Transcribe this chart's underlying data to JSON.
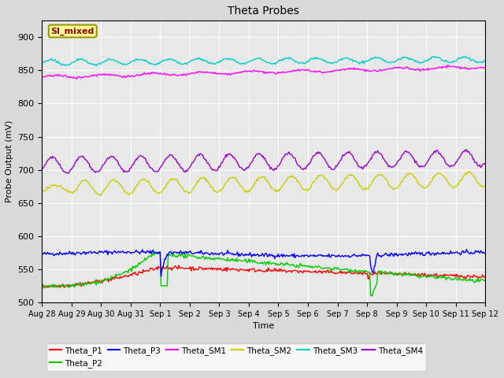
{
  "title": "Theta Probes",
  "xlabel": "Time",
  "ylabel": "Probe Output (mV)",
  "ylim": [
    500,
    925
  ],
  "fig_bg": "#d9d9d9",
  "ax_bg": "#e8e8e8",
  "annotation_text": "SI_mixed",
  "annotation_box_color": "#ffff99",
  "annotation_text_color": "#990000",
  "annotation_border_color": "#999900",
  "series_colors": {
    "Theta_P1": "#ff0000",
    "Theta_P2": "#00cc00",
    "Theta_P3": "#0000ff",
    "Theta_SM1": "#ff00ff",
    "Theta_SM2": "#cccc00",
    "Theta_SM3": "#00cccc",
    "Theta_SM4": "#9900cc"
  },
  "tick_labels": [
    "Aug 28",
    "Aug 29",
    "Aug 30",
    "Aug 31",
    "Sep 1",
    "Sep 2",
    "Sep 3",
    "Sep 4",
    "Sep 5",
    "Sep 6",
    "Sep 7",
    "Sep 8",
    "Sep 9",
    "Sep 10",
    "Sep 11",
    "Sep 12"
  ],
  "yticks": [
    500,
    550,
    600,
    650,
    700,
    750,
    800,
    850,
    900
  ],
  "grid_color": "white",
  "legend_ncol": 6
}
